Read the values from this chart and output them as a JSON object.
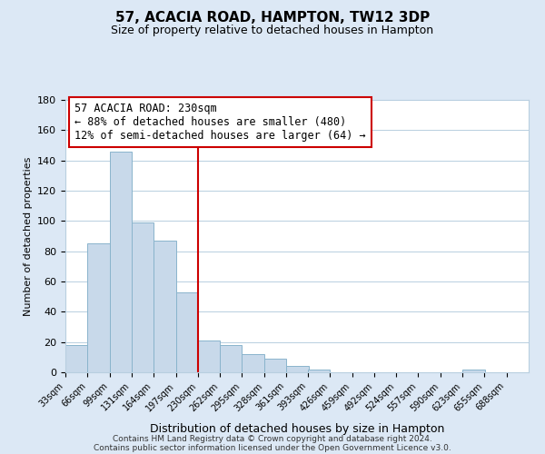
{
  "title": "57, ACACIA ROAD, HAMPTON, TW12 3DP",
  "subtitle": "Size of property relative to detached houses in Hampton",
  "xlabel": "Distribution of detached houses by size in Hampton",
  "ylabel": "Number of detached properties",
  "bar_left_edges": [
    33,
    66,
    99,
    131,
    164,
    197,
    230,
    262,
    295,
    328,
    361,
    393,
    426,
    459,
    492,
    524,
    557,
    590,
    623,
    655
  ],
  "bar_heights": [
    18,
    85,
    146,
    99,
    87,
    53,
    21,
    18,
    12,
    9,
    4,
    2,
    0,
    0,
    0,
    0,
    0,
    0,
    2,
    0
  ],
  "bin_width": 33,
  "tick_labels": [
    "33sqm",
    "66sqm",
    "99sqm",
    "131sqm",
    "164sqm",
    "197sqm",
    "230sqm",
    "262sqm",
    "295sqm",
    "328sqm",
    "361sqm",
    "393sqm",
    "426sqm",
    "459sqm",
    "492sqm",
    "524sqm",
    "557sqm",
    "590sqm",
    "623sqm",
    "655sqm",
    "688sqm"
  ],
  "tick_positions": [
    33,
    66,
    99,
    131,
    164,
    197,
    230,
    262,
    295,
    328,
    361,
    393,
    426,
    459,
    492,
    524,
    557,
    590,
    623,
    655,
    688
  ],
  "property_line_x": 230,
  "bar_color": "#c8d9ea",
  "bar_edge_color": "#8ab4cc",
  "line_color": "#cc0000",
  "ylim": [
    0,
    180
  ],
  "yticks": [
    0,
    20,
    40,
    60,
    80,
    100,
    120,
    140,
    160,
    180
  ],
  "annotation_title": "57 ACACIA ROAD: 230sqm",
  "annotation_line1": "← 88% of detached houses are smaller (480)",
  "annotation_line2": "12% of semi-detached houses are larger (64) →",
  "footer_line1": "Contains HM Land Registry data © Crown copyright and database right 2024.",
  "footer_line2": "Contains public sector information licensed under the Open Government Licence v3.0.",
  "bg_color": "#dce8f5",
  "plot_bg_color": "#ffffff",
  "grid_color": "#b8cfe0"
}
